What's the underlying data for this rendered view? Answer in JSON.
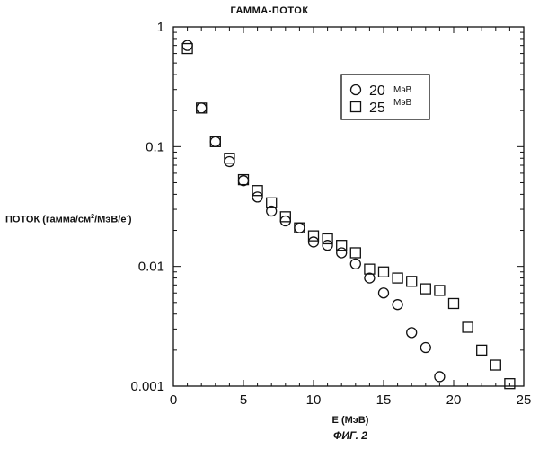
{
  "chart_data": {
    "type": "scatter",
    "title": "ГАММА-ПОТОК",
    "ylabel_prefix": "ПОТОК (гамма/см",
    "ylabel_exp": "2",
    "ylabel_suffix": "/МэВ/e",
    "ylabel_exp2": "-",
    "ylabel_close": ")",
    "xlabel": "E (МэВ)",
    "caption": "ФИГ. 2",
    "x_scale": "linear",
    "y_scale": "log",
    "xlim": [
      0,
      25
    ],
    "ylim": [
      0.001,
      1
    ],
    "x_ticks": [
      "0",
      "5",
      "10",
      "15",
      "20",
      "25"
    ],
    "y_ticks": [
      "1",
      "0.1",
      "0.01",
      "0.001"
    ],
    "legend_position": "top-right",
    "series": [
      {
        "name": "20",
        "unit": "МэВ",
        "marker": "circle",
        "x": [
          1,
          2,
          3,
          4,
          5,
          6,
          7,
          8,
          9,
          10,
          11,
          12,
          13,
          14,
          15,
          16,
          17,
          18,
          19
        ],
        "y": [
          0.7,
          0.21,
          0.11,
          0.075,
          0.052,
          0.038,
          0.029,
          0.024,
          0.021,
          0.016,
          0.015,
          0.013,
          0.0105,
          0.008,
          0.006,
          0.0048,
          0.0028,
          0.0021,
          0.0012
        ]
      },
      {
        "name": "25",
        "unit": "МэВ",
        "marker": "square",
        "x": [
          1,
          2,
          3,
          4,
          5,
          6,
          7,
          8,
          9,
          10,
          11,
          12,
          13,
          14,
          15,
          16,
          17,
          18,
          19,
          20,
          21,
          22,
          23,
          24
        ],
        "y": [
          0.66,
          0.21,
          0.11,
          0.08,
          0.053,
          0.043,
          0.034,
          0.026,
          0.021,
          0.018,
          0.017,
          0.015,
          0.013,
          0.0095,
          0.009,
          0.008,
          0.0075,
          0.0065,
          0.0063,
          0.0049,
          0.0031,
          0.002,
          0.0015,
          0.00105
        ]
      }
    ]
  }
}
